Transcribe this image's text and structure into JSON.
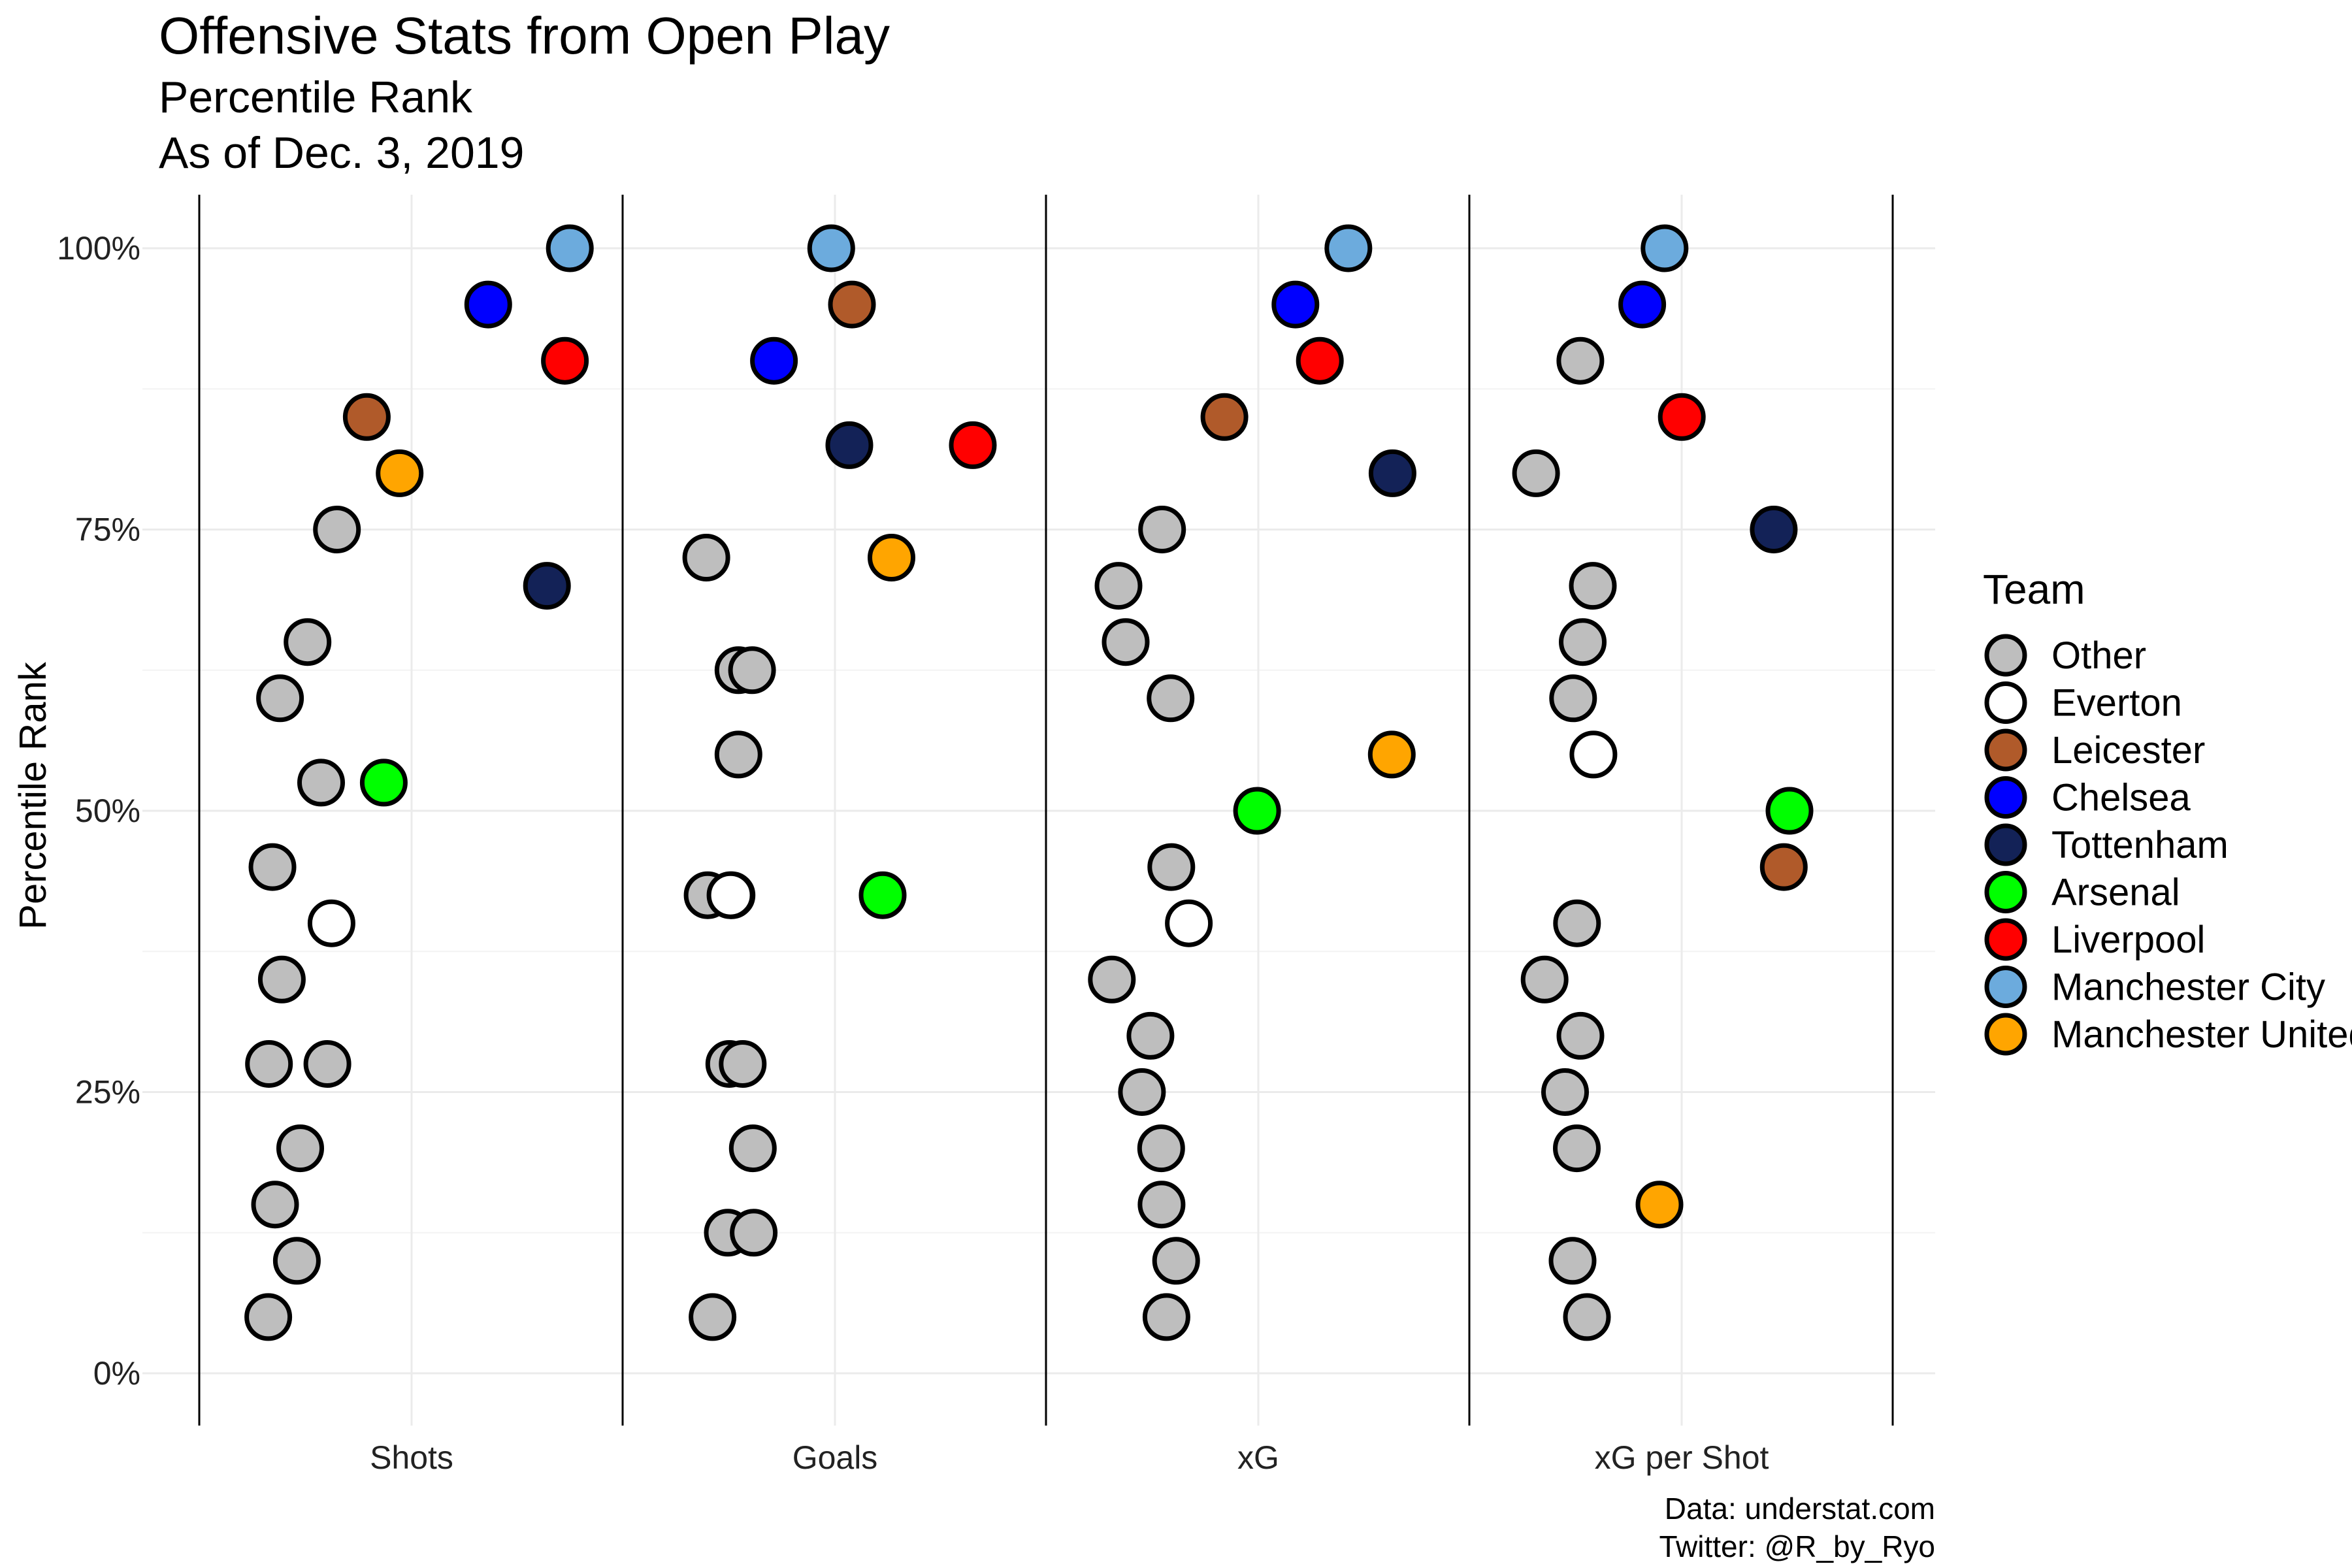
{
  "title": "Offensive Stats from Open Play",
  "subtitle": "Percentile Rank",
  "subtitle2": "As of Dec. 3, 2019",
  "caption_line1": "Data: understat.com",
  "caption_line2": "Twitter: @R_by_Ryo",
  "chart_data": {
    "type": "scatter",
    "ylabel": "Percentile Rank",
    "xlabel": "",
    "ylim": [
      0,
      100
    ],
    "yticks": [
      0,
      25,
      50,
      75,
      100
    ],
    "ytick_labels": [
      "0%",
      "25%",
      "50%",
      "75%",
      "100%"
    ],
    "categories": [
      "Shots",
      "Goals",
      "xG",
      "xG per Shot"
    ],
    "grid": true,
    "legend": {
      "title": "Team",
      "position": "right",
      "entries": [
        {
          "name": "Other",
          "color": "#BEBEBE"
        },
        {
          "name": "Everton",
          "color": "#FFFFFF"
        },
        {
          "name": "Leicester",
          "color": "#B05A2A"
        },
        {
          "name": "Chelsea",
          "color": "#0000FF"
        },
        {
          "name": "Tottenham",
          "color": "#132257"
        },
        {
          "name": "Arsenal",
          "color": "#00FF00"
        },
        {
          "name": "Liverpool",
          "color": "#FF0000"
        },
        {
          "name": "Manchester City",
          "color": "#6CABDD"
        },
        {
          "name": "Manchester United",
          "color": "#FFA500"
        }
      ]
    },
    "series": [
      {
        "name": "Other",
        "points": [
          {
            "stat": "Shots",
            "value": 75
          },
          {
            "stat": "Shots",
            "value": 65
          },
          {
            "stat": "Shots",
            "value": 60
          },
          {
            "stat": "Shots",
            "value": 52.5
          },
          {
            "stat": "Shots",
            "value": 45
          },
          {
            "stat": "Shots",
            "value": 35
          },
          {
            "stat": "Shots",
            "value": 27.5
          },
          {
            "stat": "Shots",
            "value": 27.5
          },
          {
            "stat": "Shots",
            "value": 20
          },
          {
            "stat": "Shots",
            "value": 15
          },
          {
            "stat": "Shots",
            "value": 10
          },
          {
            "stat": "Shots",
            "value": 5
          },
          {
            "stat": "Goals",
            "value": 72.5
          },
          {
            "stat": "Goals",
            "value": 62.5
          },
          {
            "stat": "Goals",
            "value": 62.5
          },
          {
            "stat": "Goals",
            "value": 55
          },
          {
            "stat": "Goals",
            "value": 42.5
          },
          {
            "stat": "Goals",
            "value": 42.5
          },
          {
            "stat": "Goals",
            "value": 27.5
          },
          {
            "stat": "Goals",
            "value": 27.5
          },
          {
            "stat": "Goals",
            "value": 20
          },
          {
            "stat": "Goals",
            "value": 12.5
          },
          {
            "stat": "Goals",
            "value": 12.5
          },
          {
            "stat": "Goals",
            "value": 5
          },
          {
            "stat": "xG",
            "value": 75
          },
          {
            "stat": "xG",
            "value": 70
          },
          {
            "stat": "xG",
            "value": 65
          },
          {
            "stat": "xG",
            "value": 60
          },
          {
            "stat": "xG",
            "value": 45
          },
          {
            "stat": "xG",
            "value": 35
          },
          {
            "stat": "xG",
            "value": 30
          },
          {
            "stat": "xG",
            "value": 25
          },
          {
            "stat": "xG",
            "value": 20
          },
          {
            "stat": "xG",
            "value": 15
          },
          {
            "stat": "xG",
            "value": 10
          },
          {
            "stat": "xG",
            "value": 5
          },
          {
            "stat": "xG per Shot",
            "value": 90
          },
          {
            "stat": "xG per Shot",
            "value": 80
          },
          {
            "stat": "xG per Shot",
            "value": 70
          },
          {
            "stat": "xG per Shot",
            "value": 65
          },
          {
            "stat": "xG per Shot",
            "value": 60
          },
          {
            "stat": "xG per Shot",
            "value": 40
          },
          {
            "stat": "xG per Shot",
            "value": 35
          },
          {
            "stat": "xG per Shot",
            "value": 30
          },
          {
            "stat": "xG per Shot",
            "value": 25
          },
          {
            "stat": "xG per Shot",
            "value": 20
          },
          {
            "stat": "xG per Shot",
            "value": 10
          },
          {
            "stat": "xG per Shot",
            "value": 5
          }
        ]
      },
      {
        "name": "Everton",
        "points": [
          {
            "stat": "Shots",
            "value": 40
          },
          {
            "stat": "Goals",
            "value": 42.5
          },
          {
            "stat": "xG",
            "value": 40
          },
          {
            "stat": "xG per Shot",
            "value": 55
          }
        ]
      },
      {
        "name": "Leicester",
        "points": [
          {
            "stat": "Shots",
            "value": 85
          },
          {
            "stat": "Goals",
            "value": 95
          },
          {
            "stat": "xG",
            "value": 85
          },
          {
            "stat": "xG per Shot",
            "value": 45
          }
        ]
      },
      {
        "name": "Chelsea",
        "points": [
          {
            "stat": "Shots",
            "value": 95
          },
          {
            "stat": "Goals",
            "value": 90
          },
          {
            "stat": "xG",
            "value": 95
          },
          {
            "stat": "xG per Shot",
            "value": 95
          }
        ]
      },
      {
        "name": "Tottenham",
        "points": [
          {
            "stat": "Shots",
            "value": 70
          },
          {
            "stat": "Goals",
            "value": 82.5
          },
          {
            "stat": "xG",
            "value": 80
          },
          {
            "stat": "xG per Shot",
            "value": 75
          }
        ]
      },
      {
        "name": "Arsenal",
        "points": [
          {
            "stat": "Shots",
            "value": 52.5
          },
          {
            "stat": "Goals",
            "value": 42.5
          },
          {
            "stat": "xG",
            "value": 50
          },
          {
            "stat": "xG per Shot",
            "value": 50
          }
        ]
      },
      {
        "name": "Liverpool",
        "points": [
          {
            "stat": "Shots",
            "value": 90
          },
          {
            "stat": "Goals",
            "value": 82.5
          },
          {
            "stat": "xG",
            "value": 90
          },
          {
            "stat": "xG per Shot",
            "value": 85
          }
        ]
      },
      {
        "name": "Manchester City",
        "points": [
          {
            "stat": "Shots",
            "value": 100
          },
          {
            "stat": "Goals",
            "value": 100
          },
          {
            "stat": "xG",
            "value": 100
          },
          {
            "stat": "xG per Shot",
            "value": 100
          }
        ]
      },
      {
        "name": "Manchester United",
        "points": [
          {
            "stat": "Shots",
            "value": 80
          },
          {
            "stat": "Goals",
            "value": 72.5
          },
          {
            "stat": "xG",
            "value": 55
          },
          {
            "stat": "xG per Shot",
            "value": 15
          }
        ]
      }
    ]
  }
}
